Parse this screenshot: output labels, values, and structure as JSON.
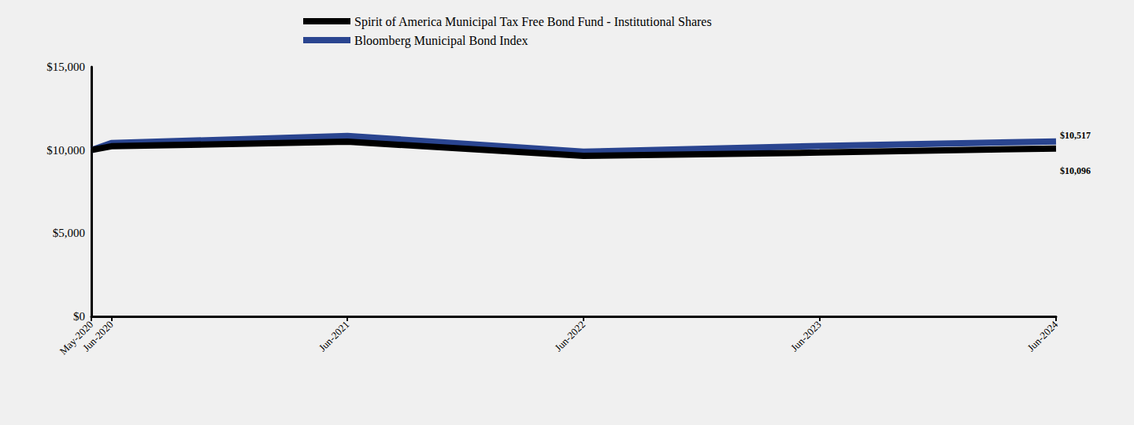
{
  "chart_data": {
    "type": "line",
    "x": [
      "May-2020",
      "Jun-2020",
      "Jun-2021",
      "Jun-2022",
      "Jun-2023",
      "Jun-2024"
    ],
    "xticks": [
      "May-2020",
      "Jun-2020",
      "Jun-2021",
      "Jun-2022",
      "Jun-2023",
      "Jun-2024"
    ],
    "series": [
      {
        "name": "Spirit of America Municipal Tax Free Bond Fund - Institutional Shares",
        "color": "#000000",
        "values": [
          10000,
          10230,
          10500,
          9650,
          9850,
          10096
        ],
        "value_labels": [
          null,
          null,
          null,
          null,
          null,
          "$10,096"
        ]
      },
      {
        "name": "Bloomberg Municipal Bond Index",
        "color": "#2a4590",
        "values": [
          10000,
          10420,
          10850,
          9900,
          10250,
          10517
        ],
        "value_labels": [
          null,
          null,
          null,
          null,
          null,
          "$10,517"
        ]
      }
    ],
    "ylim": [
      0,
      15000
    ],
    "yticks": [
      {
        "value": 0,
        "label": "$0"
      },
      {
        "value": 5000,
        "label": "$5,000"
      },
      {
        "value": 10000,
        "label": "$10,000"
      },
      {
        "value": 15000,
        "label": "$15,000"
      }
    ],
    "grid": false,
    "legend": "top"
  }
}
